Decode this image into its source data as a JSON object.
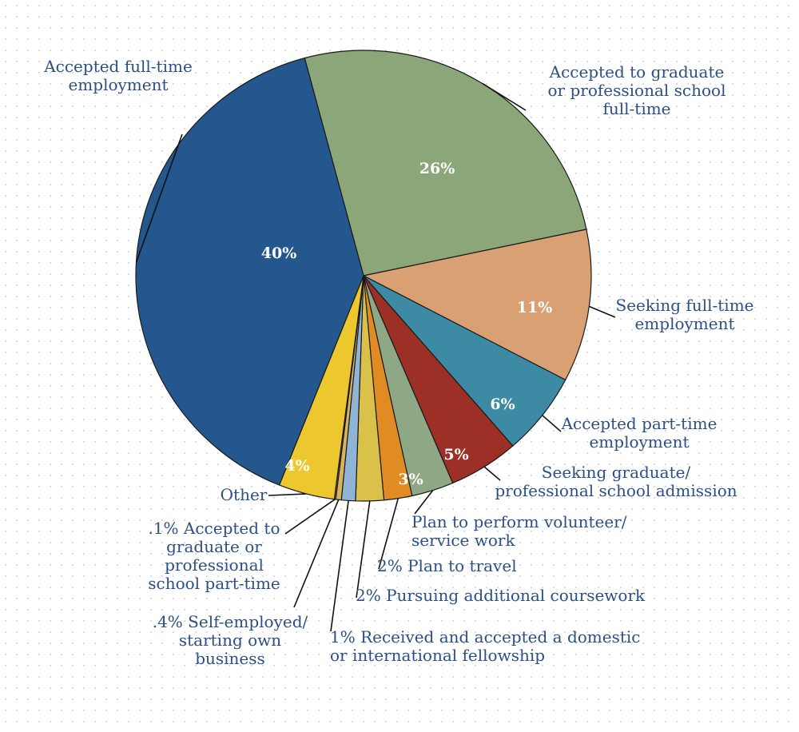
{
  "chart_data": {
    "type": "pie",
    "title": "",
    "slices": [
      {
        "label": "Accepted to graduate or professional school full-time",
        "value": 26,
        "pct_label": "26%",
        "color": "#8ba679",
        "label_lines": [
          "Accepted to graduate",
          "or professional school",
          "full-time"
        ]
      },
      {
        "label": "Seeking full-time employment",
        "value": 11,
        "pct_label": "11%",
        "color": "#d9a173",
        "label_lines": [
          "Seeking full-time",
          "employment"
        ]
      },
      {
        "label": "Accepted part-time employment",
        "value": 6,
        "pct_label": "6%",
        "color": "#3d8aa5",
        "label_lines": [
          "Accepted part-time",
          "employment"
        ]
      },
      {
        "label": "Seeking graduate/ professional school admission",
        "value": 5,
        "pct_label": "5%",
        "color": "#9c2f26",
        "label_lines": [
          "Seeking graduate/",
          "professional school admission"
        ]
      },
      {
        "label": "Plan to perform volunteer/ service work",
        "value": 3,
        "pct_label": "3%",
        "color": "#8ea784",
        "label_lines": [
          "Plan to perform volunteer/",
          "service work"
        ]
      },
      {
        "label": "Plan to travel",
        "value": 2,
        "pct_label": "",
        "color": "#e08c23",
        "label_lines": [
          "2% Plan to travel"
        ]
      },
      {
        "label": "Pursuing additional coursework",
        "value": 2,
        "pct_label": "",
        "color": "#d9c14a",
        "label_lines": [
          "2% Pursuing additional coursework"
        ]
      },
      {
        "label": "Received and accepted a domestic or international fellowship",
        "value": 1,
        "pct_label": "",
        "color": "#8fb4d6",
        "label_lines": [
          "1% Received and accepted a domestic",
          "or international fellowship"
        ]
      },
      {
        "label": "Self-employed/ starting own business",
        "value": 0.4,
        "pct_label": "",
        "color": "#d9b25c",
        "label_lines": [
          ".4% Self-employed/",
          "starting own",
          "business"
        ]
      },
      {
        "label": "Accepted to graduate or professional school part-time",
        "value": 0.1,
        "pct_label": "",
        "color": "#c76a3a",
        "label_lines": [
          ".1% Accepted to",
          "graduate or",
          "professional",
          "school part-time"
        ]
      },
      {
        "label": "Other",
        "value": 4,
        "pct_label": "4%",
        "color": "#ecc82e",
        "label_lines": [
          "Other"
        ]
      },
      {
        "label": "Accepted full-time employment",
        "value": 40,
        "pct_label": "40%",
        "color": "#25578f",
        "label_lines": [
          "Accepted full-time",
          "employment"
        ]
      }
    ]
  }
}
